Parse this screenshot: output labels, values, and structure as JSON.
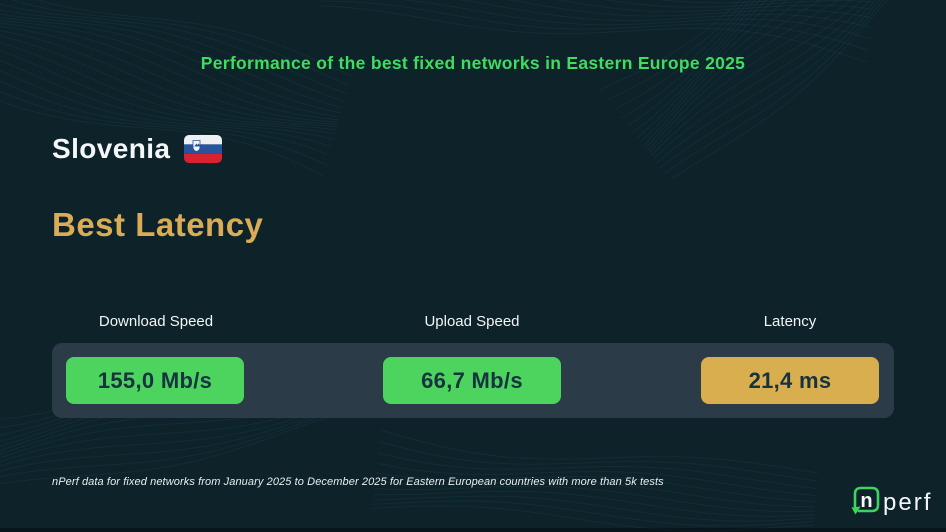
{
  "header": {
    "title": "Performance of the best fixed networks in Eastern Europe 2025"
  },
  "country": {
    "name": "Slovenia",
    "flag": "slovenia-flag"
  },
  "section": {
    "title": "Best Latency"
  },
  "stats": {
    "items": [
      {
        "label": "Download Speed",
        "value": "155,0 Mb/s",
        "color": "#4CD45E"
      },
      {
        "label": "Upload Speed",
        "value": "66,7 Mb/s",
        "color": "#4CD45E"
      },
      {
        "label": "Latency",
        "value": "21,4 ms",
        "color": "#D9AE4E"
      }
    ]
  },
  "footer": {
    "note": "nPerf data for fixed networks from January 2025 to December 2025 for Eastern European countries with more than 5k tests"
  },
  "logo": {
    "n": "n",
    "rest": "perf"
  },
  "colors": {
    "background": "#0E222A",
    "accent_green": "#3EDC5F",
    "accent_gold": "#D9AC55",
    "panel": "#2B3C48",
    "value_text": "#16333F"
  }
}
